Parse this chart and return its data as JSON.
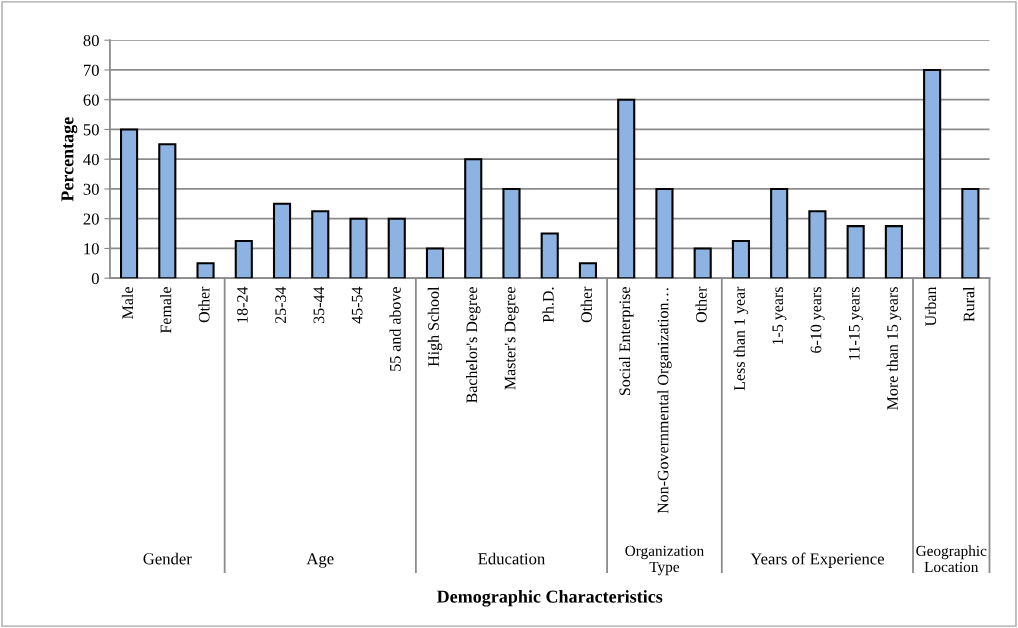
{
  "chart_data": {
    "type": "bar",
    "xlabel": "Demographic Characteristics",
    "ylabel": "Percentage",
    "categories": [
      "Male",
      "Female",
      "Other",
      "18-24",
      "25-34",
      "35-44",
      "45-54",
      "55 and above",
      "High School",
      "Bachelor's Degree",
      "Master's Degree",
      "Ph.D.",
      "Other",
      "Social Enterprise",
      "Non-Governmental Organization…",
      "Other",
      "Less than 1 year",
      "1-5 years",
      "6-10 years",
      "11-15 years",
      "More than 15 years",
      "Urban",
      "Rural"
    ],
    "values": [
      50,
      45,
      5,
      12.5,
      25,
      22.5,
      20,
      20,
      10,
      40,
      30,
      15,
      5,
      60,
      30,
      10,
      12.5,
      30,
      22.5,
      17.5,
      17.5,
      70,
      30
    ],
    "color": "#8db3e2",
    "ylim": [
      0,
      80
    ],
    "yticks": [
      0,
      10,
      20,
      30,
      40,
      50,
      60,
      70,
      80
    ],
    "grid": "y",
    "annotations": [
      "Gender",
      "Age",
      "Education",
      "Organization Type",
      "Years of Experience",
      "Geographic Location"
    ]
  }
}
